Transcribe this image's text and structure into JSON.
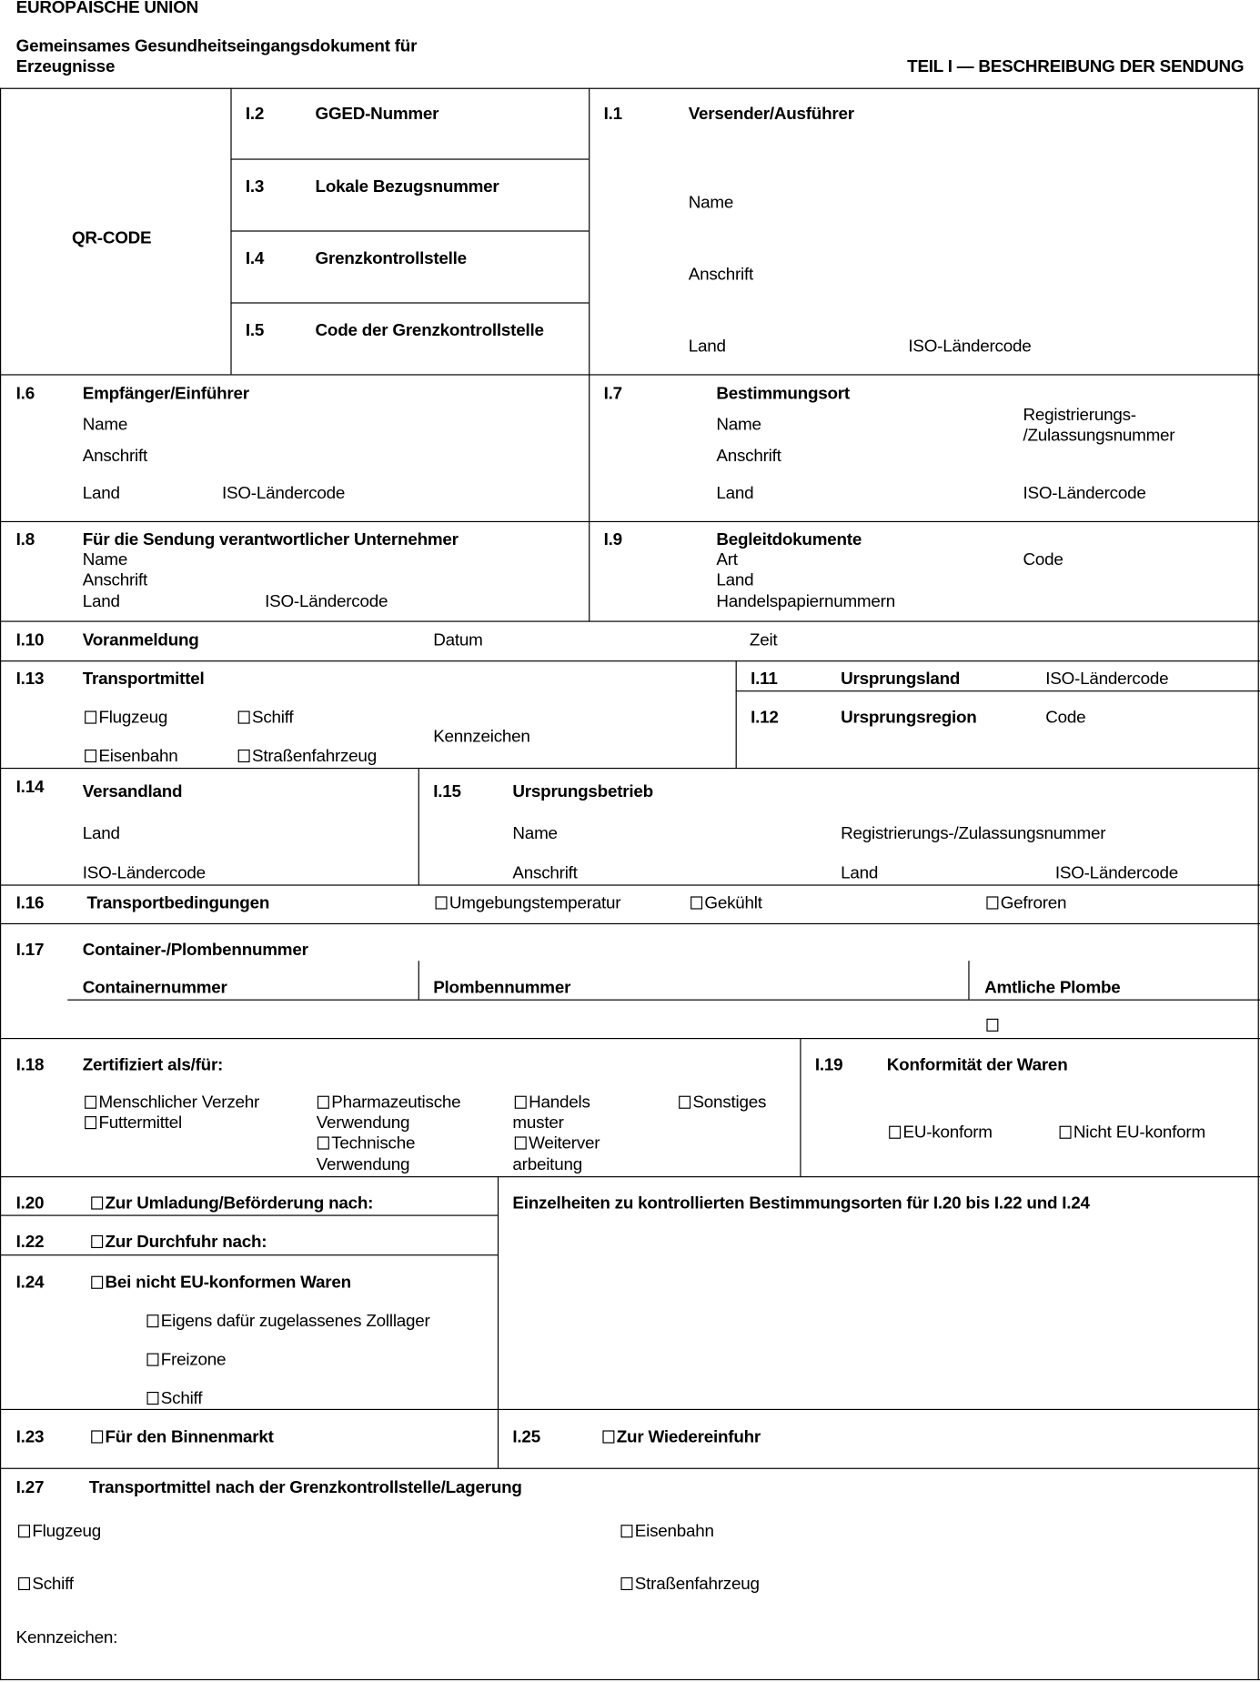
{
  "header": {
    "union": "EUROPÄISCHE UNION",
    "doc_title_1": "Gemeinsames Gesundheitseingangsdokument für",
    "doc_title_2": "Erzeugnisse",
    "part": "TEIL I — BESCHREIBUNG DER SENDUNG"
  },
  "qr": {
    "label": "QR-CODE"
  },
  "i2": {
    "num": "I.2",
    "label": "GGED-Nummer"
  },
  "i3": {
    "num": "I.3",
    "label": "Lokale Bezugsnummer"
  },
  "i4": {
    "num": "I.4",
    "label": "Grenzkontrollstelle"
  },
  "i5": {
    "num": "I.5",
    "label": "Code der Grenzkontrollstelle"
  },
  "i1": {
    "num": "I.1",
    "label": "Versender/Ausführer",
    "name": "Name",
    "address": "Anschrift",
    "country": "Land",
    "iso": "ISO-Ländercode"
  },
  "i6": {
    "num": "I.6",
    "label": "Empfänger/Einführer",
    "name": "Name",
    "address": "Anschrift",
    "country": "Land",
    "iso": "ISO-Ländercode"
  },
  "i7": {
    "num": "I.7",
    "label": "Bestimmungsort",
    "name": "Name",
    "reg_1": "Registrierungs-",
    "reg_2": "/Zulassungsnummer",
    "address": "Anschrift",
    "country": "Land",
    "iso": "ISO-Ländercode"
  },
  "i8": {
    "num": "I.8",
    "label": "Für die Sendung verantwortlicher Unternehmer",
    "name": "Name",
    "address": "Anschrift",
    "country": "Land",
    "iso": "ISO-Ländercode"
  },
  "i9": {
    "num": "I.9",
    "label": "Begleitdokumente",
    "type": "Art",
    "code": "Code",
    "country": "Land",
    "commercial": "Handelspapiernummern"
  },
  "i10": {
    "num": "I.10",
    "label": "Voranmeldung",
    "date": "Datum",
    "time": "Zeit"
  },
  "i13": {
    "num": "I.13",
    "label": "Transportmittel",
    "aircraft": "Flugzeug",
    "ship": "Schiff",
    "rail": "Eisenbahn",
    "road": "Straßenfahrzeug",
    "id": "Kennzeichen"
  },
  "i11": {
    "num": "I.11",
    "label": "Ursprungsland",
    "iso": "ISO-Ländercode"
  },
  "i12": {
    "num": "I.12",
    "label": "Ursprungsregion",
    "code": "Code"
  },
  "i14": {
    "num": "I.14",
    "label": "Versandland",
    "country": "Land",
    "iso": "ISO-Ländercode"
  },
  "i15": {
    "num": "I.15",
    "label": "Ursprungsbetrieb",
    "name": "Name",
    "reg": "Registrierungs-/Zulassungsnummer",
    "address": "Anschrift",
    "country": "Land",
    "iso": "ISO-Ländercode"
  },
  "i16": {
    "num": "I.16",
    "label": "Transportbedingungen",
    "ambient": "Umgebungstemperatur",
    "chilled": "Gekühlt",
    "frozen": "Gefroren"
  },
  "i17": {
    "num": "I.17",
    "label": "Container-/Plombennummer",
    "container": "Containernummer",
    "seal": "Plombennummer",
    "official": "Amtliche Plombe"
  },
  "i18": {
    "num": "I.18",
    "label": "Zertifiziert als/für:",
    "human": "Menschlicher Verzehr",
    "feed": "Futtermittel",
    "pharma_1": "Pharmazeutische",
    "pharma_2": "Verwendung",
    "tech_1": "Technische",
    "tech_2": "Verwendung",
    "trade_1": "Handels",
    "trade_2": "muster",
    "proc_1": "Weiterver",
    "proc_2": "arbeitung",
    "other": "Sonstiges"
  },
  "i19": {
    "num": "I.19",
    "label": "Konformität der Waren",
    "eu": "EU-konform",
    "non_eu": "Nicht EU-konform"
  },
  "i20": {
    "num": "I.20",
    "label": "Zur Umladung/Beförderung nach:"
  },
  "i22": {
    "num": "I.22",
    "label": "Zur Durchfuhr nach:"
  },
  "i24": {
    "num": "I.24",
    "label": "Bei nicht EU-konformen Waren",
    "warehouse": "Eigens dafür zugelassenes Zolllager",
    "freezone": "Freizone",
    "ship": "Schiff"
  },
  "details": {
    "label": "Einzelheiten zu kontrollierten Bestimmungsorten für I.20 bis I.22 und I.24"
  },
  "i23": {
    "num": "I.23",
    "label": "Für den Binnenmarkt"
  },
  "i25": {
    "num": "I.25",
    "label": "Zur Wiedereinfuhr"
  },
  "i27": {
    "num": "I.27",
    "label": "Transportmittel nach der Grenzkontrollstelle/Lagerung",
    "aircraft": "Flugzeug",
    "rail": "Eisenbahn",
    "ship": "Schiff",
    "road": "Straßenfahrzeug",
    "id": "Kennzeichen:"
  }
}
